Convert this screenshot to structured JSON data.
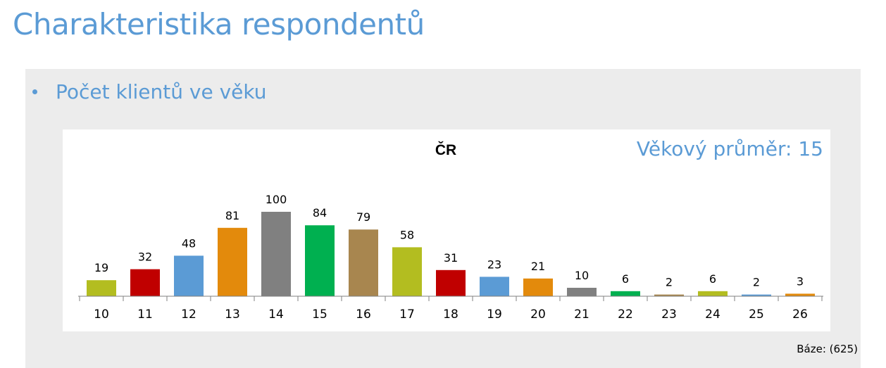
{
  "page": {
    "title": "Charakteristika respondentů"
  },
  "section": {
    "bullet": "Počet klientů ve věku"
  },
  "base_note": "Báze:  (625)",
  "chart_data": {
    "type": "bar",
    "title": "ČR",
    "annotation": "Věkový průměr: 15",
    "categories": [
      "10",
      "11",
      "12",
      "13",
      "14",
      "15",
      "16",
      "17",
      "18",
      "19",
      "20",
      "21",
      "22",
      "23",
      "24",
      "25",
      "26"
    ],
    "values": [
      19,
      32,
      48,
      81,
      100,
      84,
      79,
      58,
      31,
      23,
      21,
      10,
      6,
      2,
      6,
      2,
      3
    ],
    "colors": [
      "#b3bd20",
      "#c00000",
      "#5b9bd5",
      "#e38a0c",
      "#808080",
      "#00b050",
      "#a8864f",
      "#b3bd20",
      "#c00000",
      "#5b9bd5",
      "#e38a0c",
      "#808080",
      "#00b050",
      "#a8864f",
      "#b3bd20",
      "#5b9bd5",
      "#e38a0c"
    ],
    "xlabel": "",
    "ylabel": "",
    "ylim": [
      0,
      100
    ],
    "grid": false,
    "legend": "none",
    "annotation_color": "#5b9bd5"
  }
}
